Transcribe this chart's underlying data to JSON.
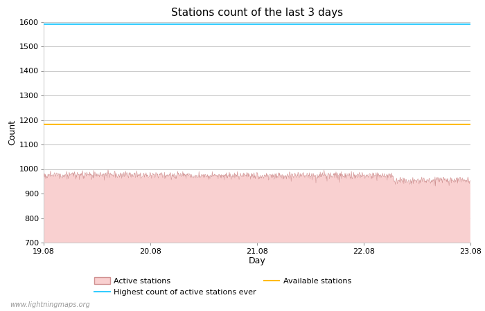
{
  "title": "Stations count of the last 3 days",
  "xlabel": "Day",
  "ylabel": "Count",
  "ylim": [
    700,
    1600
  ],
  "xlim_start": 0,
  "xlim_end": 1000,
  "yticks": [
    700,
    800,
    900,
    1000,
    1100,
    1200,
    1300,
    1400,
    1500,
    1600
  ],
  "xtick_positions": [
    0,
    250,
    500,
    750,
    1000
  ],
  "xtick_labels": [
    "19.08",
    "20.08",
    "21.08",
    "22.08",
    "23.08"
  ],
  "highest_ever_value": 1590,
  "available_stations_value": 1183,
  "active_stations_mean": 973,
  "active_stations_noise": 8,
  "cyan_color": "#33ccff",
  "yellow_color": "#ffbb00",
  "pink_fill_color": "#f9d0d0",
  "pink_line_color": "#d09090",
  "bg_color": "#ffffff",
  "grid_color": "#cccccc",
  "title_fontsize": 11,
  "axis_label_fontsize": 9,
  "tick_fontsize": 8,
  "legend_fontsize": 8,
  "watermark": "www.lightningmaps.org",
  "watermark_fontsize": 7,
  "n_points": 1000,
  "seed": 123,
  "dip_start": 820,
  "dip_end": 920,
  "dip_amount": 20,
  "end_drop_start": 920,
  "end_drop_value": 955
}
